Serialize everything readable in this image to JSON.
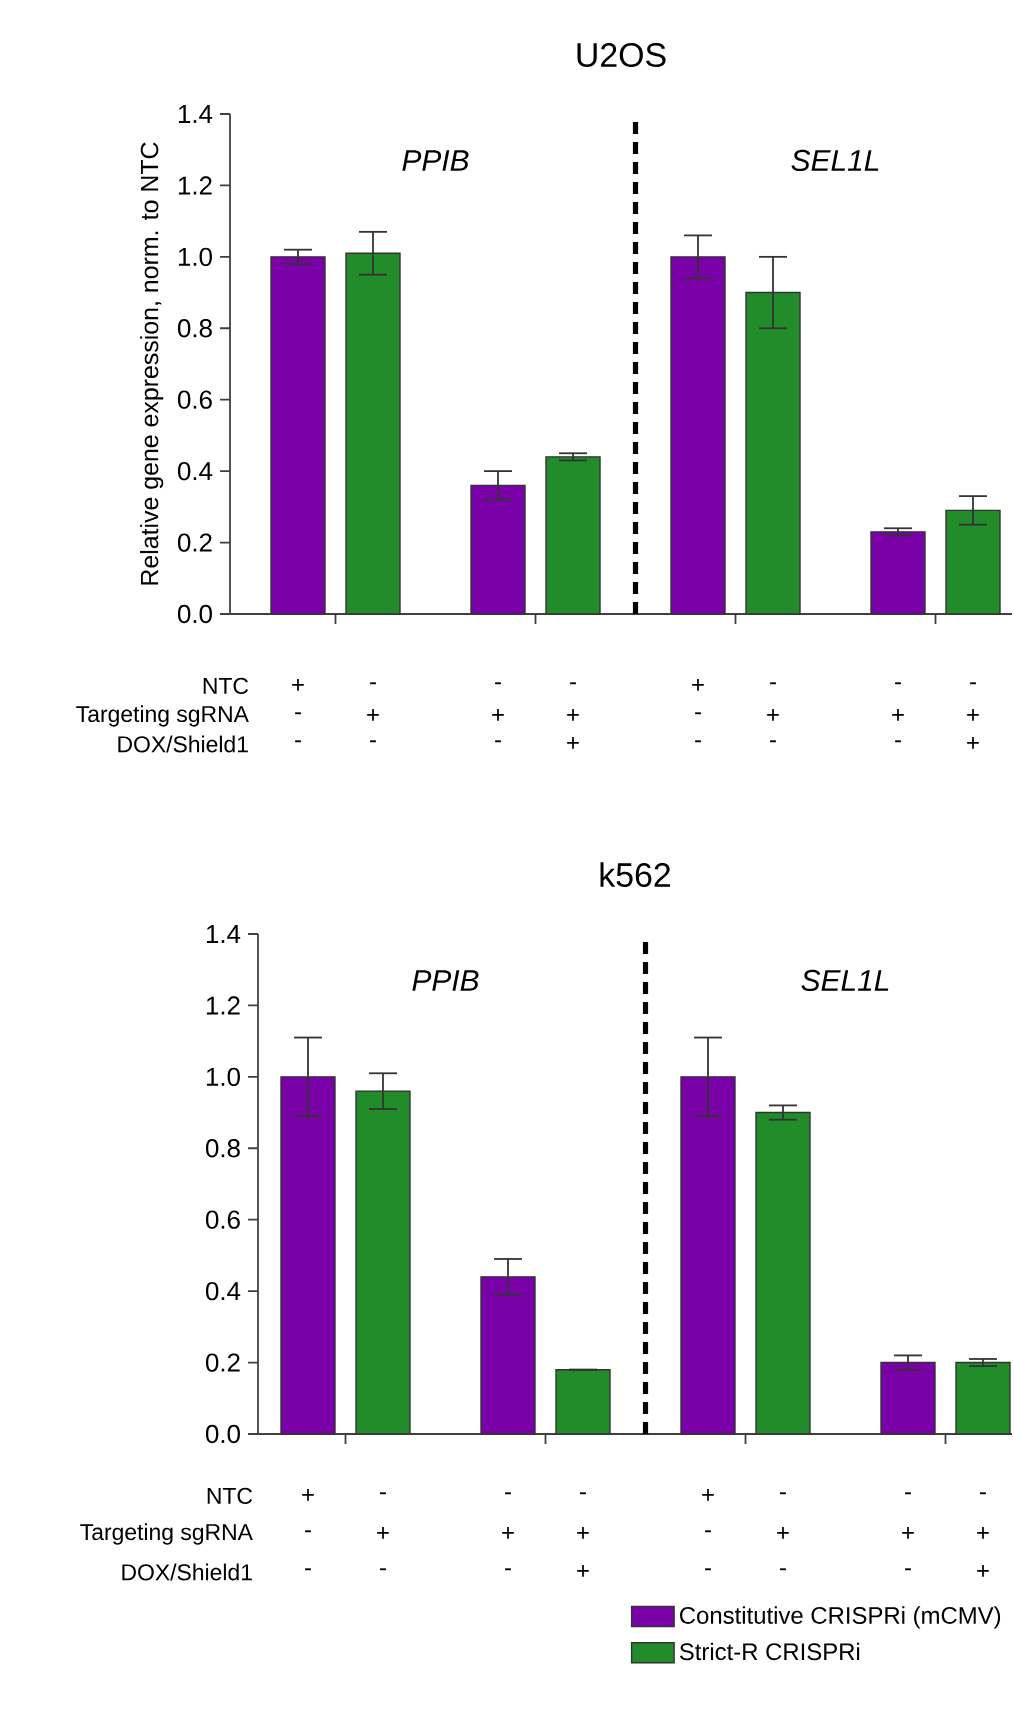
{
  "chart_data": [
    {
      "type": "bar",
      "title": "U2OS",
      "ylabel": "Relative gene expression, norm. to NTC",
      "categories": [
        null,
        null,
        null,
        null,
        null,
        null,
        null,
        null
      ],
      "series": [
        {
          "color": "#7a00a8",
          "values": [
            1.0,
            null,
            0.36,
            null,
            1.0,
            null,
            0.23,
            null
          ],
          "errors": [
            0.02,
            null,
            0.04,
            null,
            0.06,
            null,
            0.01,
            null
          ]
        },
        {
          "color": "#228b2a",
          "values": [
            null,
            1.01,
            null,
            0.44,
            null,
            0.9,
            null,
            0.29
          ],
          "errors": [
            null,
            0.06,
            null,
            0.01,
            null,
            0.1,
            null,
            0.04
          ]
        }
      ],
      "ylim": [
        0,
        1.4
      ],
      "yticks": [
        {
          "value": 0,
          "label": "0.0"
        },
        {
          "value": 0.2,
          "label": "0.2"
        },
        {
          "value": 0.4,
          "label": "0.4"
        },
        {
          "value": 0.6,
          "label": "0.6"
        },
        {
          "value": 0.8,
          "label": "0.8"
        },
        {
          "value": 1.0,
          "label": "1.0"
        },
        {
          "value": 1.2,
          "label": "1.2"
        },
        {
          "value": 1.4,
          "label": "1.4"
        }
      ],
      "legend": false,
      "annotations": [
        "PPIB",
        "SEL1L",
        "NTC",
        "Targeting sgRNA",
        "DOX/Shield1",
        "+",
        "-",
        "-",
        "-",
        "+",
        "-",
        "-",
        "-",
        "-",
        "+",
        "+",
        "+",
        "-",
        "+",
        "+",
        "+",
        "-",
        "-",
        "-",
        "+",
        "-",
        "-",
        "-",
        "+"
      ]
    },
    {
      "type": "bar",
      "title": "k562",
      "categories": [
        null,
        null,
        null,
        null,
        null,
        null,
        null,
        null
      ],
      "series": [
        {
          "name": "Constitutive CRISPRi (mCMV)",
          "color": "#7a00a8",
          "values": [
            1.0,
            null,
            0.44,
            null,
            1.0,
            null,
            0.2,
            null
          ],
          "errors": [
            0.11,
            null,
            0.05,
            null,
            0.11,
            null,
            0.02,
            null
          ]
        },
        {
          "name": "Strict-R CRISPRi",
          "color": "#228b2a",
          "values": [
            null,
            0.96,
            null,
            0.18,
            null,
            0.9,
            null,
            0.2
          ],
          "errors": [
            null,
            0.05,
            null,
            0,
            null,
            0.02,
            null,
            0.01
          ]
        }
      ],
      "ylim": [
        0,
        1.4
      ],
      "yticks": [
        {
          "value": 0,
          "label": "0.0"
        },
        {
          "value": 0.2,
          "label": "0.2"
        },
        {
          "value": 0.4,
          "label": "0.4"
        },
        {
          "value": 0.6,
          "label": "0.6"
        },
        {
          "value": 0.8,
          "label": "0.8"
        },
        {
          "value": 1.0,
          "label": "1.0"
        },
        {
          "value": 1.2,
          "label": "1.2"
        },
        {
          "value": 1.4,
          "label": "1.4"
        }
      ],
      "legend": "bottom right",
      "annotations": [
        "PPIB",
        "SEL1L",
        "NTC",
        "Targeting sgRNA",
        "DOX/Shield1",
        "+",
        "-",
        "-",
        "-",
        "+",
        "-",
        "-",
        "-",
        "-",
        "+",
        "+",
        "+",
        "-",
        "+",
        "+",
        "+",
        "-",
        "-",
        "-",
        "+",
        "-",
        "-",
        "-",
        "+"
      ]
    }
  ]
}
